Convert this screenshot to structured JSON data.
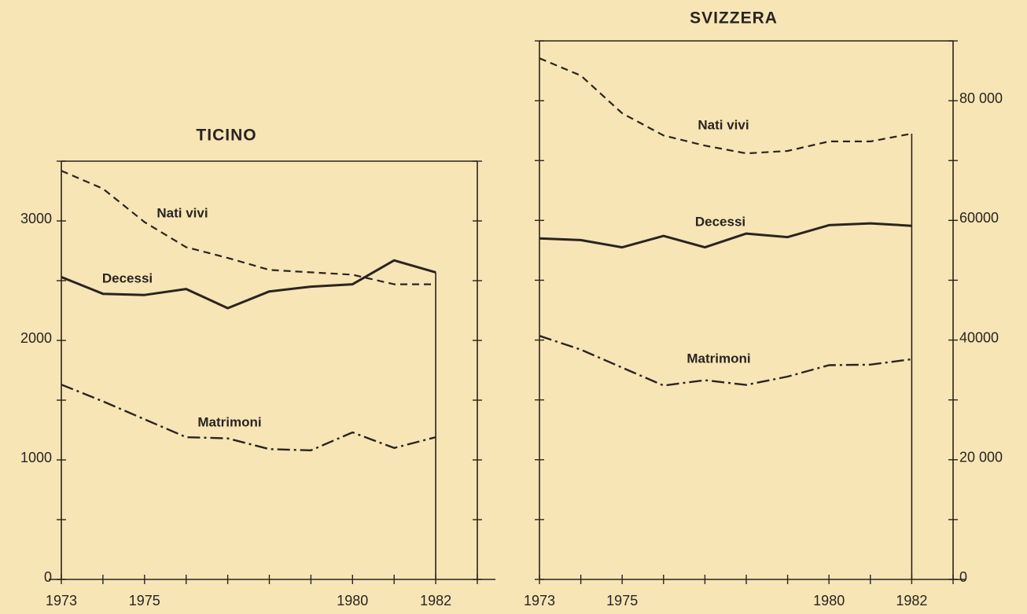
{
  "chart_data": [
    {
      "type": "line",
      "title": "TICINO",
      "x": [
        1973,
        1974,
        1975,
        1976,
        1977,
        1978,
        1979,
        1980,
        1981,
        1982
      ],
      "xlim": [
        1973,
        1983
      ],
      "xticks": [
        1973,
        1975,
        1980,
        1982
      ],
      "xticks_minor": [
        1974,
        1976,
        1977,
        1978,
        1979,
        1981,
        1983
      ],
      "ylim": [
        0,
        3500
      ],
      "yticks": [
        0,
        1000,
        2000,
        3000
      ],
      "yticks_minor": [
        500,
        1500,
        2500,
        3500
      ],
      "yaxis_side": "left",
      "series": [
        {
          "name": "Nati vivi",
          "color": "#2a2420",
          "style": "dashed",
          "values": [
            3420,
            3270,
            2990,
            2780,
            2690,
            2590,
            2570,
            2550,
            2470,
            2470
          ]
        },
        {
          "name": "Decessi",
          "color": "#2a2420",
          "style": "solid",
          "values": [
            2530,
            2390,
            2380,
            2430,
            2270,
            2410,
            2450,
            2470,
            2670,
            2570
          ]
        },
        {
          "name": "Matrimoni",
          "color": "#2a2420",
          "style": "dashdot",
          "values": [
            1630,
            1490,
            1340,
            1190,
            1180,
            1090,
            1080,
            1230,
            1100,
            1190
          ]
        }
      ]
    },
    {
      "type": "line",
      "title": "SVIZZERA",
      "x": [
        1973,
        1974,
        1975,
        1976,
        1977,
        1978,
        1979,
        1980,
        1981,
        1982
      ],
      "xlim": [
        1973,
        1983
      ],
      "xticks": [
        1973,
        1975,
        1980,
        1982
      ],
      "xticks_minor": [
        1974,
        1976,
        1977,
        1978,
        1979,
        1981,
        1983
      ],
      "ylim": [
        0,
        90000
      ],
      "yticks": [
        0,
        {
          "value": 20000,
          "label": "20 000"
        },
        40000,
        60000,
        {
          "value": 80000,
          "label": "80 000"
        }
      ],
      "yticks_minor": [
        10000,
        30000,
        50000,
        70000,
        90000
      ],
      "yaxis_side": "right",
      "series": [
        {
          "name": "Nati vivi",
          "color": "#2a2420",
          "style": "dashed",
          "values": [
            87100,
            84200,
            77900,
            74200,
            72500,
            71200,
            71600,
            73200,
            73200,
            74500
          ]
        },
        {
          "name": "Decessi",
          "color": "#2a2420",
          "style": "solid",
          "values": [
            57000,
            56700,
            55500,
            57400,
            55500,
            57800,
            57200,
            59200,
            59500,
            59100
          ]
        },
        {
          "name": "Matrimoni",
          "color": "#2a2420",
          "style": "dashdot",
          "values": [
            40700,
            38400,
            35400,
            32400,
            33300,
            32500,
            33900,
            35800,
            35900,
            36800
          ]
        }
      ]
    }
  ]
}
